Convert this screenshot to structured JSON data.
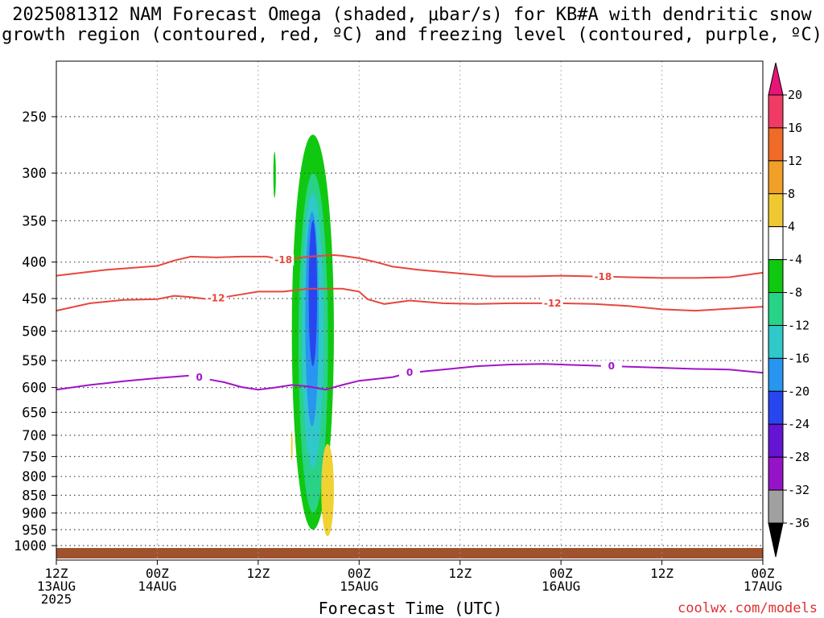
{
  "title_line1": "2025081312 NAM Forecast Omega (shaded, μbar/s) for KB#A with dendritic snow",
  "title_line2": "growth region (contoured, red, ºC) and freezing level (contoured, purple, ºC)",
  "credit": "coolwx.com/models",
  "chart_data": {
    "type": "heatmap",
    "title": "2025081312 NAM Forecast Omega (shaded, μbar/s) for KB#A with dendritic snow growth region (contoured, red, ºC) and freezing level (contoured, purple, ºC)",
    "xlabel": "Forecast Time (UTC)",
    "ylabel": "",
    "x_range_hours": [
      0,
      84
    ],
    "y_range_mb": [
      1050,
      200
    ],
    "y_scale": "log-pressure",
    "grid": true,
    "y_ticks": [
      "250",
      "300",
      "350",
      "400",
      "450",
      "500",
      "550",
      "600",
      "650",
      "700",
      "750",
      "800",
      "850",
      "900",
      "950",
      "1000"
    ],
    "x_ticks": [
      {
        "h": 0,
        "line1": "12Z",
        "line2": "13AUG",
        "line3": "2025"
      },
      {
        "h": 12,
        "line1": "00Z",
        "line2": "14AUG",
        "line3": ""
      },
      {
        "h": 24,
        "line1": "12Z",
        "line2": "",
        "line3": ""
      },
      {
        "h": 36,
        "line1": "00Z",
        "line2": "15AUG",
        "line3": ""
      },
      {
        "h": 48,
        "line1": "12Z",
        "line2": "",
        "line3": ""
      },
      {
        "h": 60,
        "line1": "00Z",
        "line2": "16AUG",
        "line3": ""
      },
      {
        "h": 72,
        "line1": "12Z",
        "line2": "",
        "line3": ""
      },
      {
        "h": 84,
        "line1": "00Z",
        "line2": "17AUG",
        "line3": ""
      }
    ],
    "colorbar": {
      "labels": [
        "20",
        "16",
        "12",
        "8",
        "4",
        "-4",
        "-8",
        "-12",
        "-16",
        "-20",
        "-24",
        "-28",
        "-32",
        "-36"
      ],
      "colors": [
        "#f03c64",
        "#f06a28",
        "#f0a028",
        "#f0c832",
        "#ffffff",
        "#10c810",
        "#28d287",
        "#30c8c8",
        "#2896f0",
        "#2846f0",
        "#6414d2",
        "#9614c8",
        "#a0a0a0"
      ],
      "top_arrow_color": "#e8147a",
      "bottom_arrow_color": "#000000"
    },
    "contours": [
      {
        "label": "-18",
        "color": "#e8463c",
        "kind": "dendritic",
        "points": [
          [
            0,
            418
          ],
          [
            6,
            410
          ],
          [
            12,
            405
          ],
          [
            14,
            398
          ],
          [
            16,
            393
          ],
          [
            19,
            394
          ],
          [
            22,
            393
          ],
          [
            25,
            393
          ],
          [
            27,
            397
          ],
          [
            30,
            393
          ],
          [
            33,
            391
          ],
          [
            34,
            392
          ],
          [
            36,
            395
          ],
          [
            38,
            400
          ],
          [
            40,
            406
          ],
          [
            43,
            410
          ],
          [
            48,
            415
          ],
          [
            52,
            419
          ],
          [
            56,
            419
          ],
          [
            60,
            418
          ],
          [
            64,
            419
          ],
          [
            68,
            420
          ],
          [
            72,
            421
          ],
          [
            76,
            421
          ],
          [
            80,
            420
          ],
          [
            84,
            414
          ]
        ],
        "label_h": [
          27,
          65
        ]
      },
      {
        "label": "-12",
        "color": "#e8463c",
        "kind": "dendritic",
        "points": [
          [
            0,
            468
          ],
          [
            4,
            457
          ],
          [
            8,
            452
          ],
          [
            12,
            451
          ],
          [
            14,
            446
          ],
          [
            16,
            448
          ],
          [
            18,
            451
          ],
          [
            20,
            448
          ],
          [
            22,
            444
          ],
          [
            24,
            440
          ],
          [
            27,
            440
          ],
          [
            30,
            436
          ],
          [
            34,
            436
          ],
          [
            36,
            440
          ],
          [
            37,
            451
          ],
          [
            39,
            458
          ],
          [
            42,
            453
          ],
          [
            46,
            457
          ],
          [
            50,
            458
          ],
          [
            54,
            457
          ],
          [
            60,
            457
          ],
          [
            64,
            458
          ],
          [
            68,
            461
          ],
          [
            72,
            466
          ],
          [
            76,
            468
          ],
          [
            80,
            465
          ],
          [
            84,
            462
          ]
        ],
        "label_h": [
          19,
          59
        ]
      },
      {
        "label": "0",
        "color": "#a014c8",
        "kind": "freezing",
        "points": [
          [
            0,
            604
          ],
          [
            4,
            595
          ],
          [
            8,
            588
          ],
          [
            12,
            582
          ],
          [
            16,
            577
          ],
          [
            18,
            584
          ],
          [
            20,
            590
          ],
          [
            22,
            599
          ],
          [
            24,
            604
          ],
          [
            26,
            600
          ],
          [
            28,
            595
          ],
          [
            30,
            598
          ],
          [
            32,
            604
          ],
          [
            34,
            595
          ],
          [
            36,
            587
          ],
          [
            40,
            580
          ],
          [
            42,
            572
          ],
          [
            46,
            566
          ],
          [
            50,
            560
          ],
          [
            54,
            557
          ],
          [
            58,
            556
          ],
          [
            62,
            558
          ],
          [
            66,
            560
          ],
          [
            70,
            562
          ],
          [
            76,
            565
          ],
          [
            80,
            566
          ],
          [
            84,
            572
          ]
        ],
        "label_h": [
          17,
          42,
          66
        ]
      }
    ],
    "shaded_regions": [
      {
        "omega_bin": "-4 to -8",
        "color": "#10c810",
        "time_h": [
          28,
          33
        ],
        "p_mb": [
          265,
          950
        ]
      },
      {
        "omega_bin": "-4 to -8",
        "color": "#10c810",
        "time_h": [
          25.8,
          26.1
        ],
        "p_mb": [
          280,
          325
        ]
      },
      {
        "omega_bin": "-8 to -12",
        "color": "#28d287",
        "time_h": [
          28.8,
          32.3
        ],
        "p_mb": [
          300,
          900
        ]
      },
      {
        "omega_bin": "-12 to -16",
        "color": "#30c8c8",
        "time_h": [
          29.2,
          31.8
        ],
        "p_mb": [
          320,
          780
        ]
      },
      {
        "omega_bin": "-16 to -20",
        "color": "#2896f0",
        "time_h": [
          29.6,
          31.2
        ],
        "p_mb": [
          340,
          680
        ]
      },
      {
        "omega_bin": "-20 to -24",
        "color": "#2846f0",
        "time_h": [
          30,
          31
        ],
        "p_mb": [
          350,
          560
        ]
      },
      {
        "omega_bin": "4 to 8",
        "color": "#f0d232",
        "time_h": [
          31.5,
          33
        ],
        "p_mb": [
          720,
          970
        ]
      },
      {
        "omega_bin": "4 to 8",
        "color": "#f0d232",
        "time_h": [
          27.9,
          28.1
        ],
        "p_mb": [
          690,
          760
        ]
      }
    ]
  }
}
